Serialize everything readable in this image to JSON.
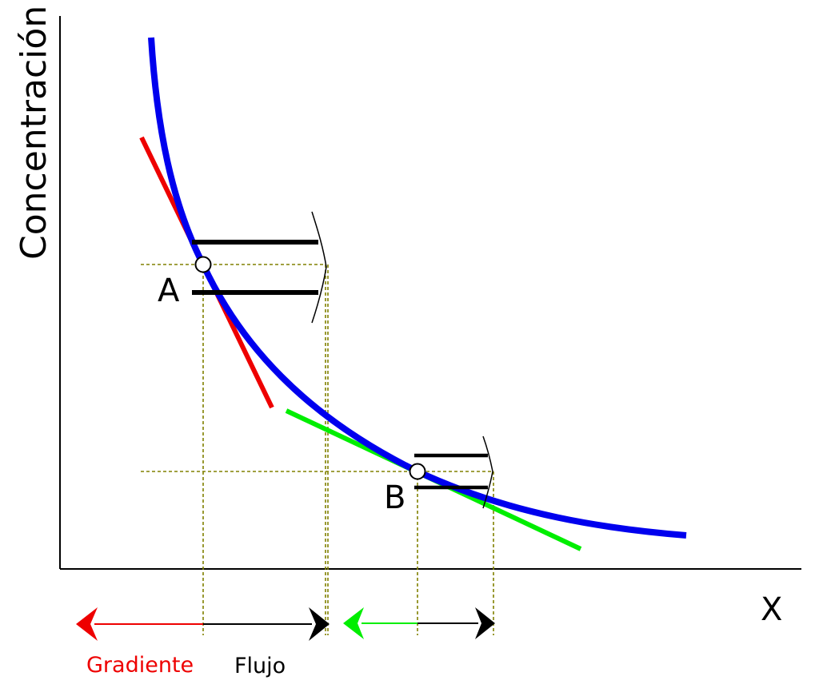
{
  "axes": {
    "y_label": "Concentración",
    "x_label": "X"
  },
  "points": {
    "a_label": "A",
    "b_label": "B"
  },
  "legend": {
    "gradient_label": "Gradiente",
    "flux_label": "Flujo"
  },
  "colors": {
    "curve": "#0000ee",
    "tangent_a": "#ee0000",
    "tangent_b": "#00ee00",
    "guides": "#808000",
    "axes": "#000000"
  }
}
